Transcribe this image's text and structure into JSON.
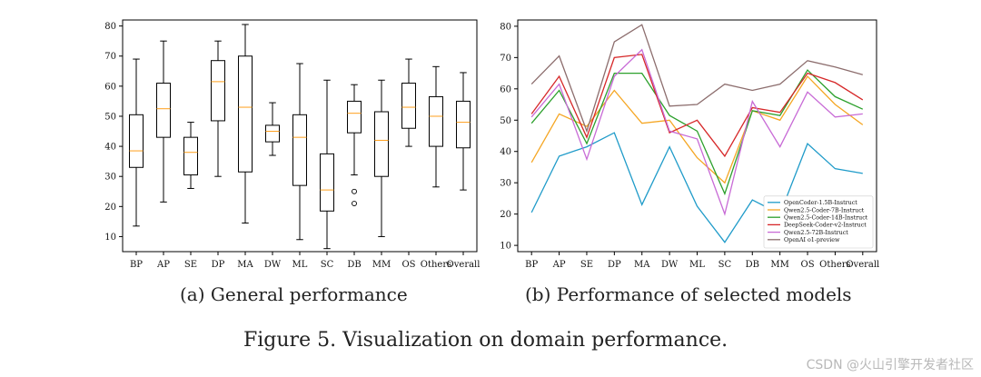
{
  "figure": {
    "caption": "Figure 5.  Visualization on domain performance.",
    "watermark": "CSDN @火山引擎开发者社区"
  },
  "subcaptions": {
    "a": "(a) General performance",
    "b": "(b) Performance of selected models"
  },
  "colors": {
    "box_edge": "#000000",
    "median": "#ff9f1c",
    "series": [
      "#1f9bc9",
      "#f5a623",
      "#2ca02c",
      "#d62728",
      "#c86bd6",
      "#8c6d6d"
    ]
  },
  "chart_data": [
    {
      "type": "box",
      "categories": [
        "BP",
        "AP",
        "SE",
        "DP",
        "MA",
        "DW",
        "ML",
        "SC",
        "DB",
        "MM",
        "OS",
        "Others",
        "Overall"
      ],
      "yticks": [
        10,
        20,
        30,
        40,
        50,
        60,
        70,
        80
      ],
      "ylim": [
        5,
        82
      ],
      "grid": false,
      "boxes": [
        {
          "whislo": 13.5,
          "q1": 33,
          "med": 38.5,
          "q3": 50.5,
          "whishi": 69,
          "fliers": []
        },
        {
          "whislo": 21.5,
          "q1": 43,
          "med": 52.5,
          "q3": 61,
          "whishi": 75,
          "fliers": []
        },
        {
          "whislo": 26,
          "q1": 30.5,
          "med": 38,
          "q3": 43,
          "whishi": 48,
          "fliers": []
        },
        {
          "whislo": 30,
          "q1": 48.5,
          "med": 61.5,
          "q3": 68.5,
          "whishi": 75,
          "fliers": []
        },
        {
          "whislo": 14.5,
          "q1": 31.5,
          "med": 53,
          "q3": 70,
          "whishi": 80.5,
          "fliers": []
        },
        {
          "whislo": 37,
          "q1": 41.5,
          "med": 45,
          "q3": 47,
          "whishi": 54.5,
          "fliers": []
        },
        {
          "whislo": 9,
          "q1": 27,
          "med": 43,
          "q3": 50.5,
          "whishi": 67.5,
          "fliers": []
        },
        {
          "whislo": 6,
          "q1": 18.5,
          "med": 25.5,
          "q3": 37.5,
          "whishi": 62,
          "fliers": []
        },
        {
          "whislo": 30.5,
          "q1": 44.5,
          "med": 51,
          "q3": 55,
          "whishi": 60.5,
          "fliers": [
            25,
            21
          ]
        },
        {
          "whislo": 10,
          "q1": 30,
          "med": 42,
          "q3": 51.5,
          "whishi": 62,
          "fliers": []
        },
        {
          "whislo": 40,
          "q1": 46,
          "med": 53,
          "q3": 61,
          "whishi": 69,
          "fliers": []
        },
        {
          "whislo": 26.5,
          "q1": 40,
          "med": 50,
          "q3": 56.5,
          "whishi": 66.5,
          "fliers": []
        },
        {
          "whislo": 25.5,
          "q1": 39.5,
          "med": 48,
          "q3": 55,
          "whishi": 64.5,
          "fliers": []
        }
      ]
    },
    {
      "type": "line",
      "categories": [
        "BP",
        "AP",
        "SE",
        "DP",
        "MA",
        "DW",
        "ML",
        "SC",
        "DB",
        "MM",
        "OS",
        "Others",
        "Overall"
      ],
      "yticks": [
        10,
        20,
        30,
        40,
        50,
        60,
        70,
        80
      ],
      "ylim": [
        8,
        82
      ],
      "grid": false,
      "legend": "bottom-right",
      "series": [
        {
          "name": "OpenCoder-1.5B-Instruct",
          "values": [
            20.5,
            38.5,
            41.5,
            46,
            23,
            41.5,
            22.5,
            11,
            24.5,
            20,
            42.5,
            34.5,
            33
          ]
        },
        {
          "name": "Qwen2.5-Coder-7B-Instruct",
          "values": [
            36.5,
            52,
            48,
            59.5,
            49,
            50,
            38,
            30,
            53,
            50,
            64,
            55,
            48.5
          ]
        },
        {
          "name": "Qwen2.5-Coder-14B-Instruct",
          "values": [
            49,
            59.5,
            42.5,
            65,
            65,
            51.5,
            46.5,
            26.5,
            53,
            51.5,
            66,
            57.5,
            53.5
          ]
        },
        {
          "name": "DeepSeek-Coder-v2-Instruct",
          "values": [
            52,
            64,
            44.5,
            70,
            71,
            46,
            50,
            38.5,
            54,
            52.5,
            65,
            62,
            56.5
          ]
        },
        {
          "name": "Qwen2.5-72B-Instruct",
          "values": [
            51,
            61.5,
            37.5,
            64,
            72.5,
            46.5,
            44,
            20,
            56,
            41.5,
            59,
            51,
            52
          ]
        },
        {
          "name": "OpenAI o1-preview",
          "values": [
            61.5,
            70.5,
            46.5,
            75,
            80.5,
            54.5,
            55,
            61.5,
            59.5,
            61.5,
            69,
            67,
            64.5
          ]
        }
      ]
    }
  ]
}
